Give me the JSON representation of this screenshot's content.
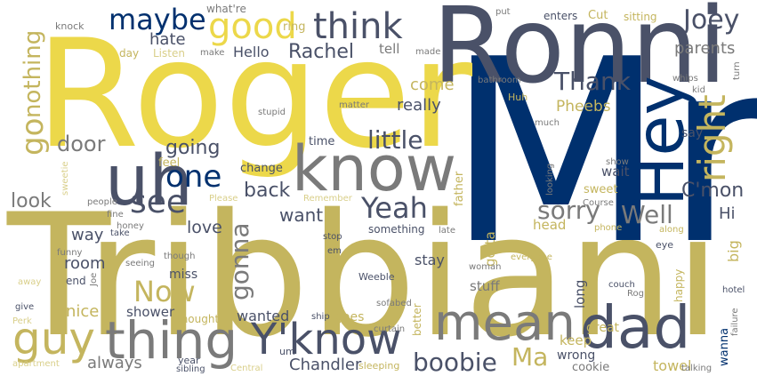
{
  "palette": {
    "navy": "#00306e",
    "slate": "#4a5168",
    "gray": "#7a7a7a",
    "olive": "#c4b55e",
    "yellow": "#ecd84a",
    "pale": "#d9cf8a"
  },
  "words": [
    {
      "text": "Tribbiani",
      "color": "olive"
    },
    {
      "text": "Mr",
      "color": "navy"
    },
    {
      "text": "Roger",
      "color": "yellow"
    },
    {
      "text": "Ronni",
      "color": "slate"
    },
    {
      "text": "know",
      "color": "gray"
    },
    {
      "text": "Hey",
      "color": "navy"
    },
    {
      "text": "uh",
      "color": "slate"
    },
    {
      "text": "thing",
      "color": "gray"
    },
    {
      "text": "Y'know",
      "color": "slate"
    },
    {
      "text": "mean",
      "color": "gray"
    },
    {
      "text": "dad",
      "color": "slate"
    },
    {
      "text": "guy",
      "color": "olive"
    },
    {
      "text": "think",
      "color": "slate"
    },
    {
      "text": "good",
      "color": "yellow"
    },
    {
      "text": "right",
      "color": "olive"
    },
    {
      "text": "maybe",
      "color": "navy"
    },
    {
      "text": "Joey",
      "color": "slate"
    },
    {
      "text": "one",
      "color": "navy"
    },
    {
      "text": "see",
      "color": "slate"
    },
    {
      "text": "Yeah",
      "color": "slate"
    },
    {
      "text": "Well",
      "color": "gray"
    },
    {
      "text": "Thank",
      "color": "slate"
    },
    {
      "text": "little",
      "color": "slate"
    },
    {
      "text": "sorry",
      "color": "gray"
    },
    {
      "text": "Now",
      "color": "olive"
    },
    {
      "text": "boobie",
      "color": "slate"
    },
    {
      "text": "go",
      "color": "olive"
    },
    {
      "text": "nothing",
      "color": "olive"
    },
    {
      "text": "gonna",
      "color": "gray"
    },
    {
      "text": "Rachel",
      "color": "slate"
    },
    {
      "text": "C'mon",
      "color": "slate"
    },
    {
      "text": "door",
      "color": "gray"
    },
    {
      "text": "going",
      "color": "slate"
    },
    {
      "text": "back",
      "color": "slate"
    },
    {
      "text": "look",
      "color": "gray"
    },
    {
      "text": "want",
      "color": "slate"
    },
    {
      "text": "Ma",
      "color": "olive"
    },
    {
      "text": "hate",
      "color": "slate"
    },
    {
      "text": "Hello",
      "color": "slate"
    },
    {
      "text": "tell",
      "color": "gray"
    },
    {
      "text": "come",
      "color": "olive"
    },
    {
      "text": "really",
      "color": "slate"
    },
    {
      "text": "Pheebs",
      "color": "olive"
    },
    {
      "text": "parents",
      "color": "gray"
    },
    {
      "text": "love",
      "color": "slate"
    },
    {
      "text": "way",
      "color": "slate"
    },
    {
      "text": "room",
      "color": "slate"
    },
    {
      "text": "nice",
      "color": "olive"
    },
    {
      "text": "always",
      "color": "gray"
    },
    {
      "text": "shower",
      "color": "slate"
    },
    {
      "text": "Chandler",
      "color": "slate"
    },
    {
      "text": "stay",
      "color": "slate"
    },
    {
      "text": "stuff",
      "color": "gray"
    },
    {
      "text": "wanted",
      "color": "slate"
    },
    {
      "text": "goes",
      "color": "olive"
    },
    {
      "text": "miss",
      "color": "slate"
    },
    {
      "text": "towel",
      "color": "olive"
    },
    {
      "text": "keep",
      "color": "olive"
    },
    {
      "text": "wrong",
      "color": "slate"
    },
    {
      "text": "great",
      "color": "olive"
    },
    {
      "text": "wanna",
      "color": "navy"
    },
    {
      "text": "big",
      "color": "olive"
    },
    {
      "text": "Hi",
      "color": "slate"
    },
    {
      "text": "head",
      "color": "olive"
    },
    {
      "text": "gotta",
      "color": "olive"
    },
    {
      "text": "long",
      "color": "slate"
    },
    {
      "text": "wait",
      "color": "slate"
    },
    {
      "text": "end",
      "color": "slate"
    },
    {
      "text": "cookie",
      "color": "gray"
    },
    {
      "text": "say",
      "color": "slate"
    },
    {
      "text": "sweet",
      "color": "olive"
    },
    {
      "text": "father",
      "color": "olive"
    },
    {
      "text": "change",
      "color": "slate"
    },
    {
      "text": "time",
      "color": "slate"
    },
    {
      "text": "something",
      "color": "slate"
    },
    {
      "text": "better",
      "color": "olive"
    },
    {
      "text": "happy",
      "color": "olive"
    },
    {
      "text": "feel",
      "color": "olive"
    },
    {
      "text": "Cut",
      "color": "olive"
    },
    {
      "text": "enters",
      "color": "slate"
    },
    {
      "text": "sitting",
      "color": "olive"
    },
    {
      "text": "what're",
      "color": "gray"
    },
    {
      "text": "ring",
      "color": "olive"
    },
    {
      "text": "knock",
      "color": "gray"
    },
    {
      "text": "day",
      "color": "olive"
    },
    {
      "text": "Listen",
      "color": "pale"
    },
    {
      "text": "make",
      "color": "gray"
    },
    {
      "text": "made",
      "color": "gray"
    },
    {
      "text": "put",
      "color": "gray"
    },
    {
      "text": "turn",
      "color": "gray"
    },
    {
      "text": "whips",
      "color": "gray"
    },
    {
      "text": "kid",
      "color": "gray"
    },
    {
      "text": "bathroom",
      "color": "gray"
    },
    {
      "text": "Huh",
      "color": "olive"
    },
    {
      "text": "much",
      "color": "gray"
    },
    {
      "text": "stupid",
      "color": "gray"
    },
    {
      "text": "matter",
      "color": "gray"
    },
    {
      "text": "sweetie",
      "color": "pale"
    },
    {
      "text": "Please",
      "color": "pale"
    },
    {
      "text": "Remember",
      "color": "pale"
    },
    {
      "text": "people",
      "color": "gray"
    },
    {
      "text": "fine",
      "color": "gray"
    },
    {
      "text": "honey",
      "color": "gray"
    },
    {
      "text": "take",
      "color": "slate"
    },
    {
      "text": "funny",
      "color": "gray"
    },
    {
      "text": "away",
      "color": "pale"
    },
    {
      "text": "Perk",
      "color": "pale"
    },
    {
      "text": "give",
      "color": "slate"
    },
    {
      "text": "apartment",
      "color": "pale"
    },
    {
      "text": "Joe",
      "color": "gray"
    },
    {
      "text": "seeing",
      "color": "gray"
    },
    {
      "text": "though",
      "color": "gray"
    },
    {
      "text": "thought",
      "color": "olive"
    },
    {
      "text": "year",
      "color": "slate"
    },
    {
      "text": "sibling",
      "color": "slate"
    },
    {
      "text": "Central",
      "color": "pale"
    },
    {
      "text": "um",
      "color": "slate"
    },
    {
      "text": "ship",
      "color": "slate"
    },
    {
      "text": "sleeping",
      "color": "olive"
    },
    {
      "text": "curtain",
      "color": "gray"
    },
    {
      "text": "Weeble",
      "color": "slate"
    },
    {
      "text": "sofabed",
      "color": "gray"
    },
    {
      "text": "stop",
      "color": "slate"
    },
    {
      "text": "em",
      "color": "slate"
    },
    {
      "text": "late",
      "color": "gray"
    },
    {
      "text": "woman",
      "color": "gray"
    },
    {
      "text": "everyone",
      "color": "olive"
    },
    {
      "text": "phone",
      "color": "olive"
    },
    {
      "text": "along",
      "color": "olive"
    },
    {
      "text": "eye",
      "color": "slate"
    },
    {
      "text": "couch",
      "color": "slate"
    },
    {
      "text": "Rog",
      "color": "gray"
    },
    {
      "text": "hotel",
      "color": "slate"
    },
    {
      "text": "failure",
      "color": "gray"
    },
    {
      "text": "talking",
      "color": "gray"
    },
    {
      "text": "looking",
      "color": "gray"
    },
    {
      "text": "Course",
      "color": "gray"
    },
    {
      "text": "show",
      "color": "gray"
    }
  ]
}
